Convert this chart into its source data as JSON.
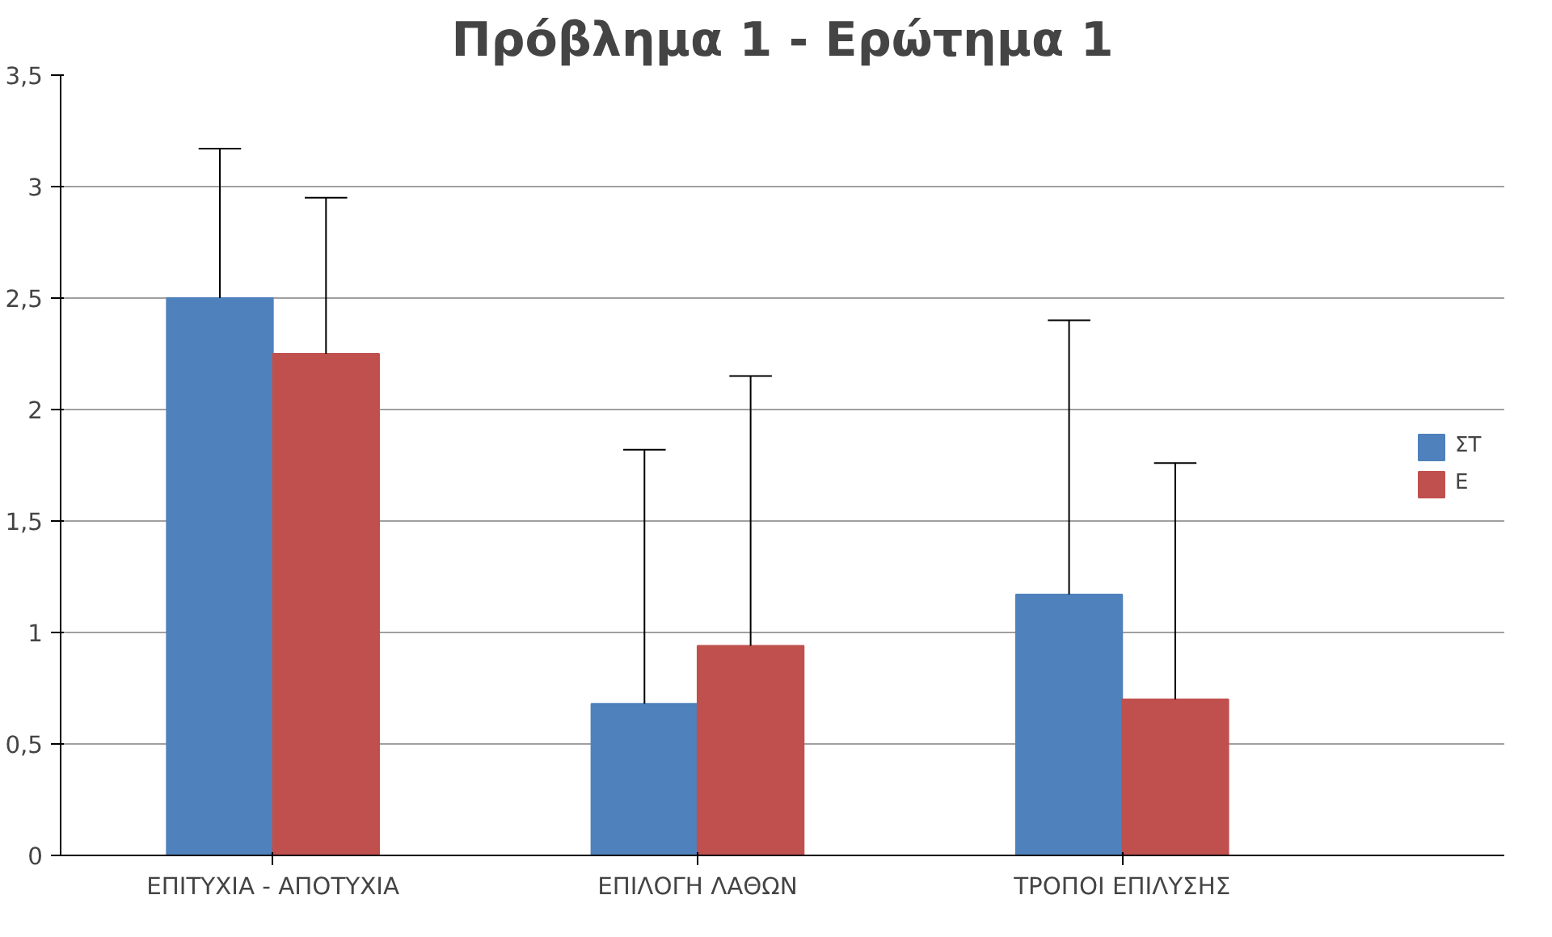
{
  "chart_data": {
    "type": "bar",
    "title": "Πρόβλημα 1 - Ερώτημα 1",
    "categories": [
      "ΕΠΙΤΥΧΙΑ - ΑΠΟΤΥΧΙΑ",
      "ΕΠΙΛΟΓΗ ΛΑΘΩΝ",
      "ΤΡΟΠΟΙ ΕΠΙΛΥΣΗΣ"
    ],
    "series": [
      {
        "name": "ΣΤ",
        "color": "#4f81bd",
        "values": [
          2.5,
          0.68,
          1.17
        ],
        "errors": [
          [
            2.5,
            3.17
          ],
          [
            0.68,
            1.82
          ],
          [
            1.17,
            2.4
          ]
        ]
      },
      {
        "name": "Ε",
        "color": "#c0504d",
        "values": [
          2.25,
          0.94,
          0.7
        ],
        "errors": [
          [
            2.25,
            2.95
          ],
          [
            0.94,
            2.15
          ],
          [
            0.7,
            1.76
          ]
        ]
      }
    ],
    "ylim": [
      0,
      3.5
    ],
    "yticks": [
      0,
      {
        "value": 0.5,
        "label": "0,5"
      },
      1,
      {
        "value": 1.5,
        "label": "1,5"
      },
      2,
      {
        "value": 2.5,
        "label": "2,5"
      },
      3,
      {
        "value": 3.5,
        "label": "3,5"
      }
    ],
    "grid": "y",
    "legend": "right"
  }
}
